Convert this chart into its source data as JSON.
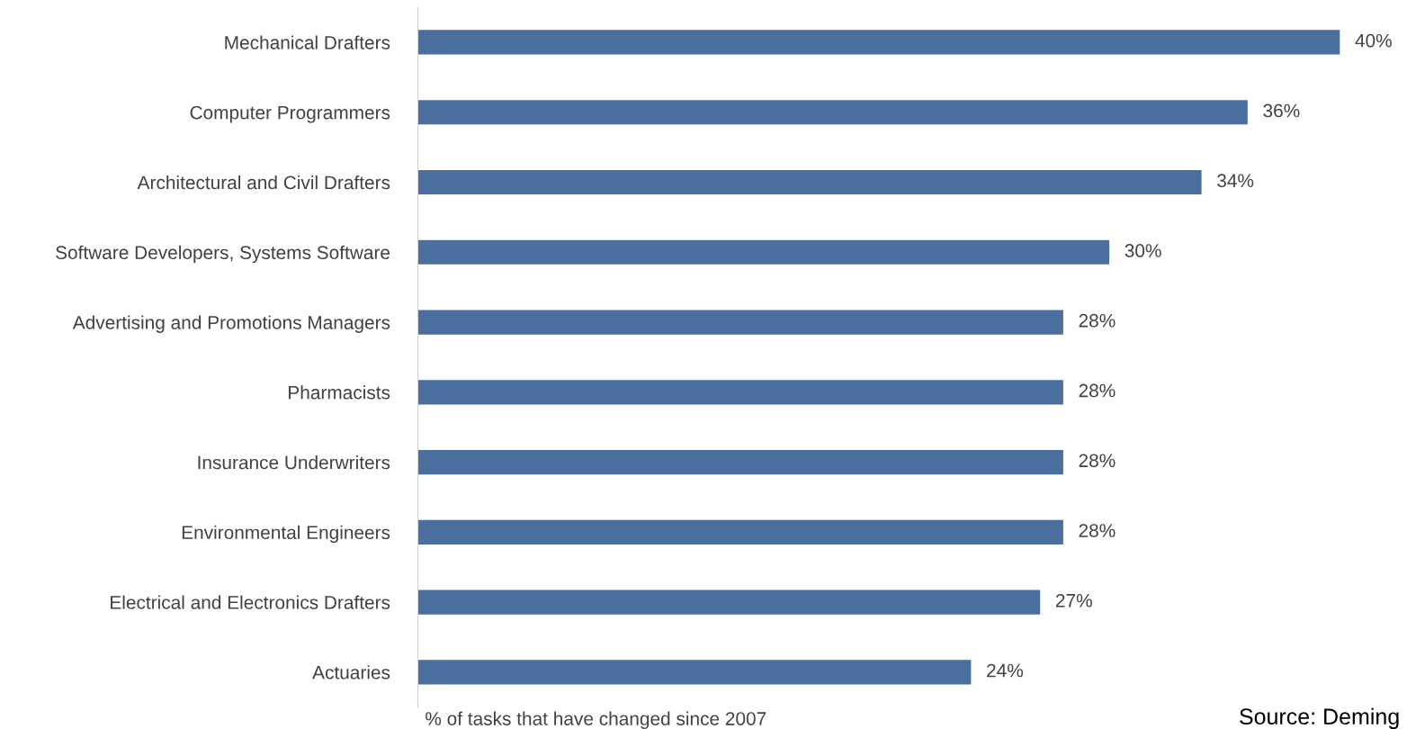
{
  "chart_data": {
    "type": "bar",
    "orientation": "horizontal",
    "categories": [
      "Mechanical Drafters",
      "Computer Programmers",
      "Architectural and Civil Drafters",
      "Software Developers, Systems Software",
      "Advertising and Promotions Managers",
      "Pharmacists",
      "Insurance Underwriters",
      "Environmental Engineers",
      "Electrical and Electronics Drafters",
      "Actuaries"
    ],
    "values": [
      40,
      36,
      34,
      30,
      28,
      28,
      28,
      28,
      27,
      24
    ],
    "value_labels": [
      "40%",
      "36%",
      "34%",
      "30%",
      "28%",
      "28%",
      "28%",
      "28%",
      "27%",
      "24%"
    ],
    "color": "#4a6f9f",
    "xlabel": "% of tasks that have changed since 2007",
    "annotations": [
      "Source: Deming"
    ],
    "grid": false,
    "legend": false
  }
}
